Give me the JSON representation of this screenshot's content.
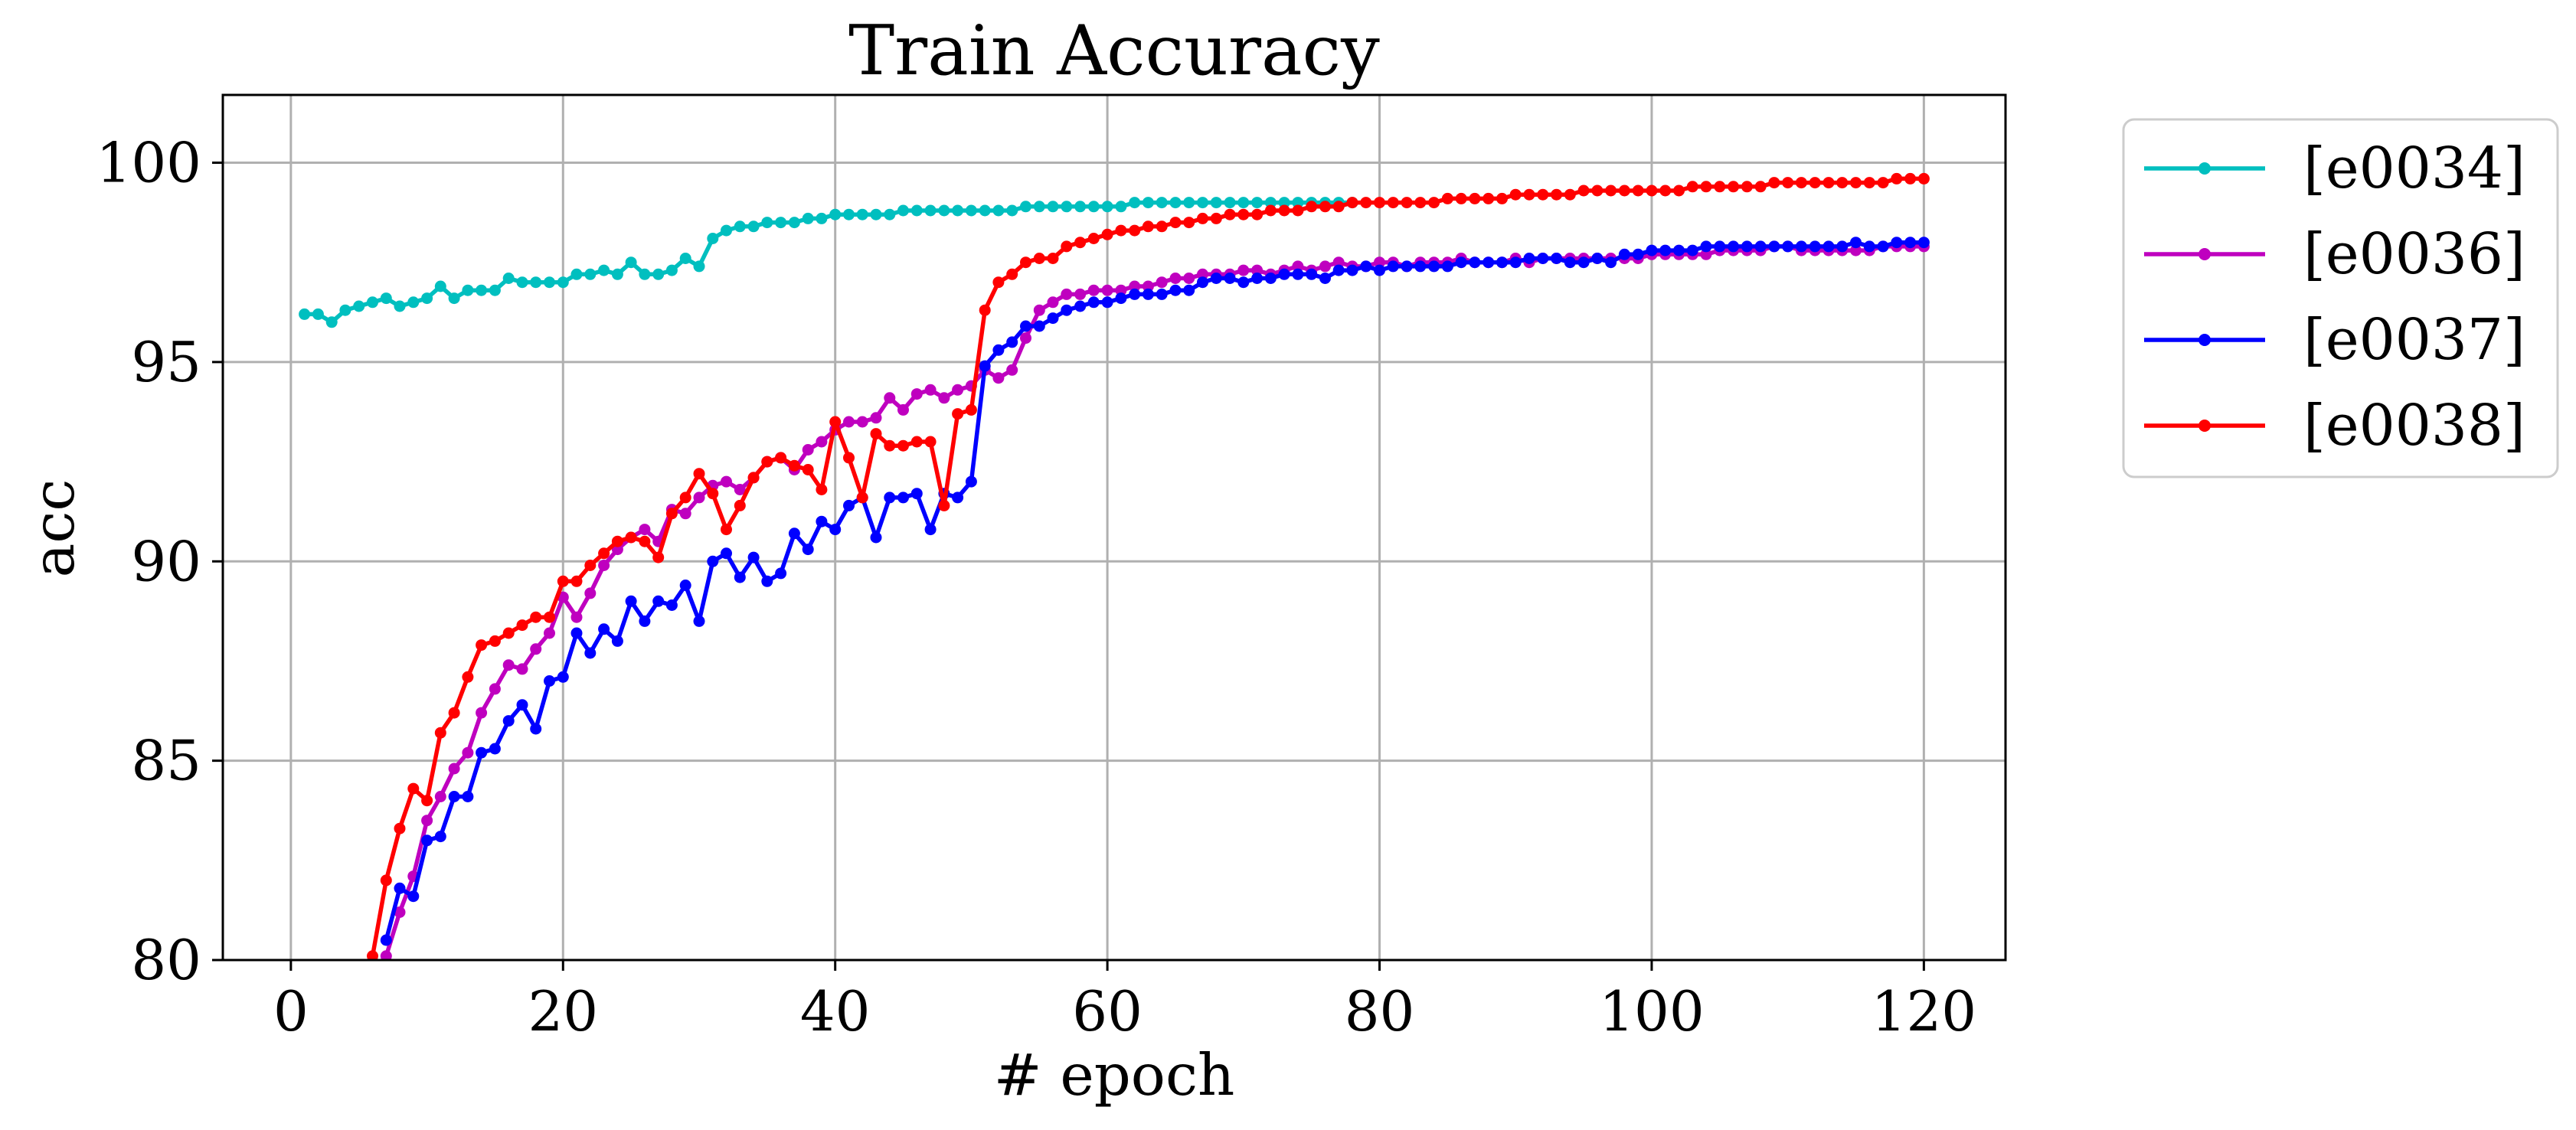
{
  "chart_data": {
    "type": "line",
    "title": "Train Accuracy",
    "xlabel": "# epoch",
    "ylabel": "acc",
    "xlim": [
      -5,
      126
    ],
    "ylim": [
      80,
      101.7
    ],
    "xticks": [
      0,
      20,
      40,
      60,
      80,
      100,
      120
    ],
    "yticks": [
      80,
      85,
      90,
      95,
      100
    ],
    "grid": true,
    "legend_position": "outside right, top",
    "marker": "dot",
    "series": [
      {
        "name": "[e0034]",
        "color": "#00bfbf",
        "x_start": 1,
        "values": [
          96.2,
          96.2,
          96.0,
          96.3,
          96.4,
          96.5,
          96.6,
          96.4,
          96.5,
          96.6,
          96.9,
          96.6,
          96.8,
          96.8,
          96.8,
          97.1,
          97.0,
          97.0,
          97.0,
          97.0,
          97.2,
          97.2,
          97.3,
          97.2,
          97.5,
          97.2,
          97.2,
          97.3,
          97.6,
          97.4,
          98.1,
          98.3,
          98.4,
          98.4,
          98.5,
          98.5,
          98.5,
          98.6,
          98.6,
          98.7,
          98.7,
          98.7,
          98.7,
          98.7,
          98.8,
          98.8,
          98.8,
          98.8,
          98.8,
          98.8,
          98.8,
          98.8,
          98.8,
          98.9,
          98.9,
          98.9,
          98.9,
          98.9,
          98.9,
          98.9,
          98.9,
          99.0,
          99.0,
          99.0,
          99.0,
          99.0,
          99.0,
          99.0,
          99.0,
          99.0,
          99.0,
          99.0,
          99.0,
          99.0,
          99.0,
          99.0,
          99.0,
          99.0
        ]
      },
      {
        "name": "[e0036]",
        "color": "#bf00bf",
        "x_start": 6,
        "values": [
          79.2,
          80.1,
          81.2,
          82.1,
          83.5,
          84.1,
          84.8,
          85.2,
          86.2,
          86.8,
          87.4,
          87.3,
          87.8,
          88.2,
          89.1,
          88.6,
          89.2,
          89.9,
          90.3,
          90.6,
          90.8,
          90.5,
          91.3,
          91.2,
          91.6,
          91.9,
          92.0,
          91.8,
          92.1,
          92.5,
          92.6,
          92.3,
          92.8,
          93.0,
          93.3,
          93.5,
          93.5,
          93.6,
          94.1,
          93.8,
          94.2,
          94.3,
          94.1,
          94.3,
          94.4,
          94.8,
          94.6,
          94.8,
          95.6,
          96.3,
          96.5,
          96.7,
          96.7,
          96.8,
          96.8,
          96.8,
          96.9,
          96.9,
          97.0,
          97.1,
          97.1,
          97.2,
          97.2,
          97.2,
          97.3,
          97.3,
          97.2,
          97.3,
          97.4,
          97.3,
          97.4,
          97.5,
          97.4,
          97.4,
          97.5,
          97.5,
          97.4,
          97.5,
          97.5,
          97.5,
          97.6,
          97.5,
          97.5,
          97.5,
          97.6,
          97.5,
          97.6,
          97.6,
          97.6,
          97.6,
          97.6,
          97.6,
          97.6,
          97.6,
          97.7,
          97.7,
          97.7,
          97.7,
          97.7,
          97.8,
          97.8,
          97.8,
          97.8,
          97.9,
          97.9,
          97.8,
          97.8,
          97.8,
          97.8,
          97.8,
          97.8,
          97.9,
          97.9,
          97.9,
          97.9
        ]
      },
      {
        "name": "[e0037]",
        "color": "#0000ff",
        "x_start": 7,
        "values": [
          80.5,
          81.8,
          81.6,
          83.0,
          83.1,
          84.1,
          84.1,
          85.2,
          85.3,
          86.0,
          86.4,
          85.8,
          87.0,
          87.1,
          88.2,
          87.7,
          88.3,
          88.0,
          89.0,
          88.5,
          89.0,
          88.9,
          89.4,
          88.5,
          90.0,
          90.2,
          89.6,
          90.1,
          89.5,
          89.7,
          90.7,
          90.3,
          91.0,
          90.8,
          91.4,
          91.6,
          90.6,
          91.6,
          91.6,
          91.7,
          90.8,
          91.7,
          91.6,
          92.0,
          94.9,
          95.3,
          95.5,
          95.9,
          95.9,
          96.1,
          96.3,
          96.4,
          96.5,
          96.5,
          96.6,
          96.7,
          96.7,
          96.7,
          96.8,
          96.8,
          97.0,
          97.1,
          97.1,
          97.0,
          97.1,
          97.1,
          97.2,
          97.2,
          97.2,
          97.1,
          97.3,
          97.3,
          97.4,
          97.3,
          97.4,
          97.4,
          97.4,
          97.4,
          97.4,
          97.5,
          97.5,
          97.5,
          97.5,
          97.5,
          97.6,
          97.6,
          97.6,
          97.5,
          97.5,
          97.6,
          97.5,
          97.7,
          97.7,
          97.8,
          97.8,
          97.8,
          97.8,
          97.9,
          97.9,
          97.9,
          97.9,
          97.9,
          97.9,
          97.9,
          97.9,
          97.9,
          97.9,
          97.9,
          98.0,
          97.9,
          97.9,
          98.0,
          98.0,
          98.0
        ]
      },
      {
        "name": "[e0038]",
        "color": "#ff0000",
        "x_start": 5,
        "values": [
          79.6,
          80.1,
          82.0,
          83.3,
          84.3,
          84.0,
          85.7,
          86.2,
          87.1,
          87.9,
          88.0,
          88.2,
          88.4,
          88.6,
          88.6,
          89.5,
          89.5,
          89.9,
          90.2,
          90.5,
          90.6,
          90.5,
          90.1,
          91.2,
          91.6,
          92.2,
          91.7,
          90.8,
          91.4,
          92.1,
          92.5,
          92.6,
          92.4,
          92.3,
          91.8,
          93.5,
          92.6,
          91.6,
          93.2,
          92.9,
          92.9,
          93.0,
          93.0,
          91.4,
          93.7,
          93.8,
          96.3,
          97.0,
          97.2,
          97.5,
          97.6,
          97.6,
          97.9,
          98.0,
          98.1,
          98.2,
          98.3,
          98.3,
          98.4,
          98.4,
          98.5,
          98.5,
          98.6,
          98.6,
          98.7,
          98.7,
          98.7,
          98.8,
          98.8,
          98.8,
          98.9,
          98.9,
          98.9,
          99.0,
          99.0,
          99.0,
          99.0,
          99.0,
          99.0,
          99.0,
          99.1,
          99.1,
          99.1,
          99.1,
          99.1,
          99.2,
          99.2,
          99.2,
          99.2,
          99.2,
          99.3,
          99.3,
          99.3,
          99.3,
          99.3,
          99.3,
          99.3,
          99.3,
          99.4,
          99.4,
          99.4,
          99.4,
          99.4,
          99.4,
          99.5,
          99.5,
          99.5,
          99.5,
          99.5,
          99.5,
          99.5,
          99.5,
          99.5,
          99.6,
          99.6,
          99.6
        ]
      }
    ]
  }
}
